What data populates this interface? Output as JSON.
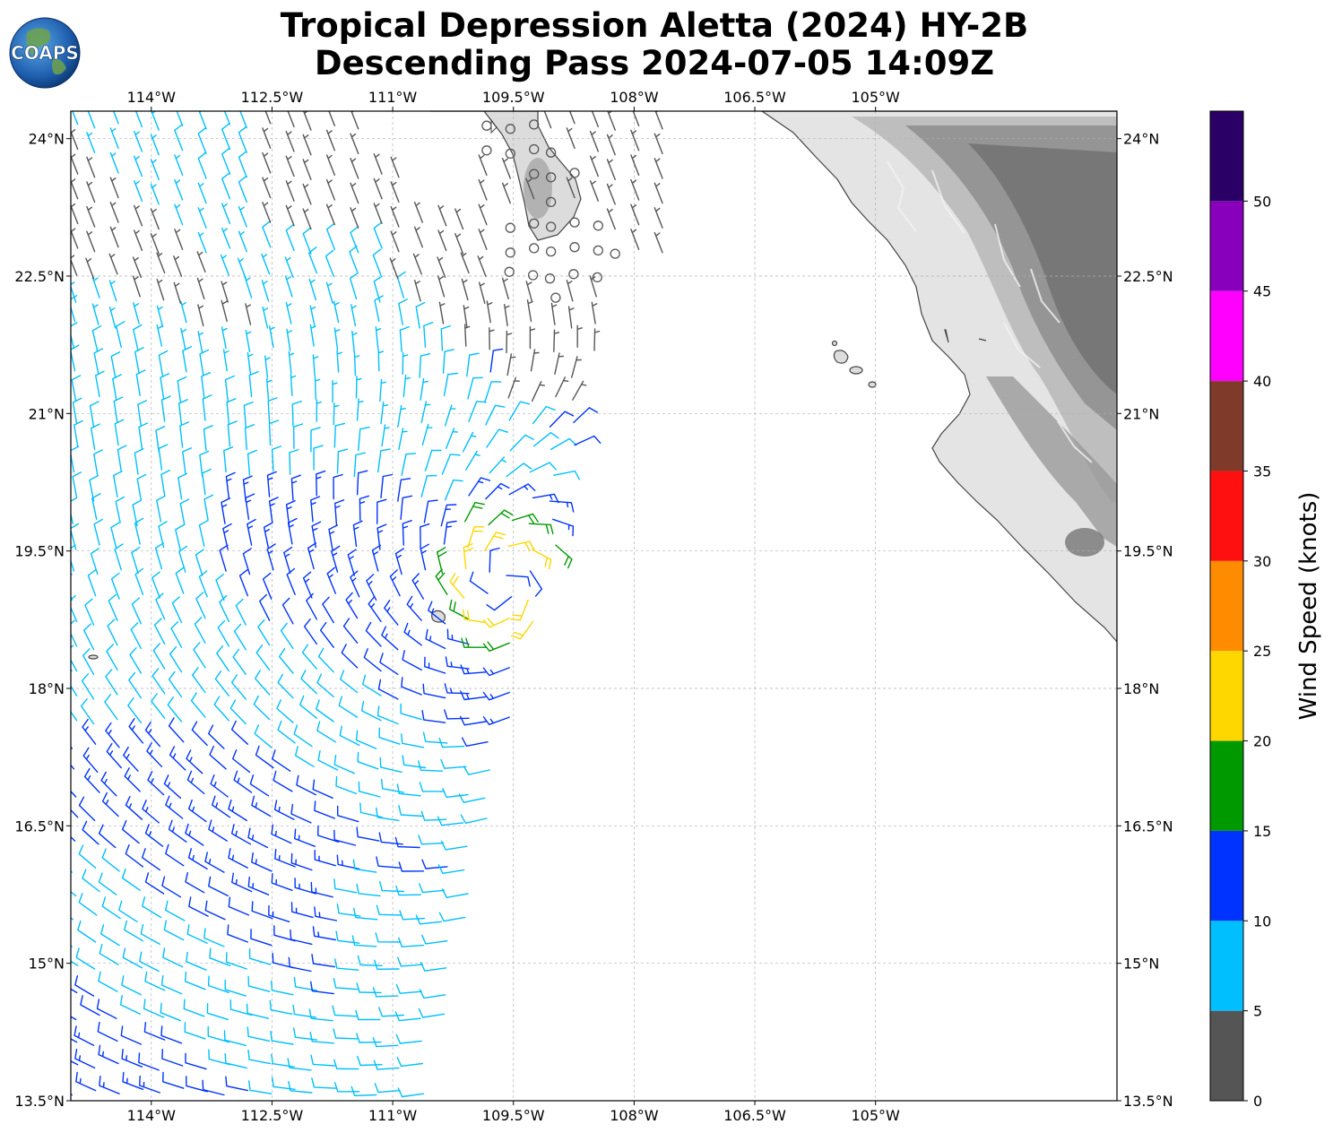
{
  "title": {
    "line1": "Tropical Depression Aletta (2024) HY-2B",
    "line2": "Descending Pass 2024-07-05 14:09Z"
  },
  "logo": {
    "text": "COAPS",
    "icon": "globe-logo-icon"
  },
  "map": {
    "lon_range": [
      -115.0,
      -102.0
    ],
    "lat_range": [
      13.5,
      24.3
    ],
    "lon_ticks": [
      {
        "value": -114.0,
        "label": "114°W"
      },
      {
        "value": -112.5,
        "label": "112.5°W"
      },
      {
        "value": -111.0,
        "label": "111°W"
      },
      {
        "value": -109.5,
        "label": "109.5°W"
      },
      {
        "value": -108.0,
        "label": "108°W"
      },
      {
        "value": -106.5,
        "label": "106.5°W"
      },
      {
        "value": -105.0,
        "label": "105°W"
      }
    ],
    "lat_ticks": [
      {
        "value": 24.0,
        "label": "24°N"
      },
      {
        "value": 22.5,
        "label": "22.5°N"
      },
      {
        "value": 21.0,
        "label": "21°N"
      },
      {
        "value": 19.5,
        "label": "19.5°N"
      },
      {
        "value": 18.0,
        "label": "18°N"
      },
      {
        "value": 16.5,
        "label": "16.5°N"
      },
      {
        "value": 15.0,
        "label": "15°N"
      },
      {
        "value": 13.5,
        "label": "13.5°N"
      }
    ],
    "grid": true,
    "coastline_color": "#444444",
    "terrain": "grayscale topography over Mexico mainland and Baja California tip"
  },
  "colorbar": {
    "label": "Wind Speed (knots)",
    "ticks": [
      "0",
      "5",
      "10",
      "15",
      "20",
      "25",
      "30",
      "35",
      "40",
      "45",
      "50"
    ],
    "bins": [
      {
        "from": 0,
        "to": 5,
        "color": "#555555"
      },
      {
        "from": 5,
        "to": 10,
        "color": "#00bfff"
      },
      {
        "from": 10,
        "to": 15,
        "color": "#0033ff"
      },
      {
        "from": 15,
        "to": 20,
        "color": "#009900"
      },
      {
        "from": 20,
        "to": 25,
        "color": "#ffd700"
      },
      {
        "from": 25,
        "to": 30,
        "color": "#ff8c00"
      },
      {
        "from": 30,
        "to": 35,
        "color": "#ff1010"
      },
      {
        "from": 35,
        "to": 40,
        "color": "#7f3a2a"
      },
      {
        "from": 40,
        "to": 45,
        "color": "#ff00ff"
      },
      {
        "from": 45,
        "to": 50,
        "color": "#8800bb"
      },
      {
        "from": 50,
        "to": 55,
        "color": "#2a0066"
      }
    ]
  },
  "wind_field": {
    "center": {
      "lon": -109.6,
      "lat": 19.2
    },
    "swath": "descending pass, east edge from about 108.2°W,22.6°N to 110.6°W,13.5°N",
    "calm_area": "near-calm winds (circles) around 23.4°N, 110°W–108°W",
    "peak_speed_kt": 23
  }
}
